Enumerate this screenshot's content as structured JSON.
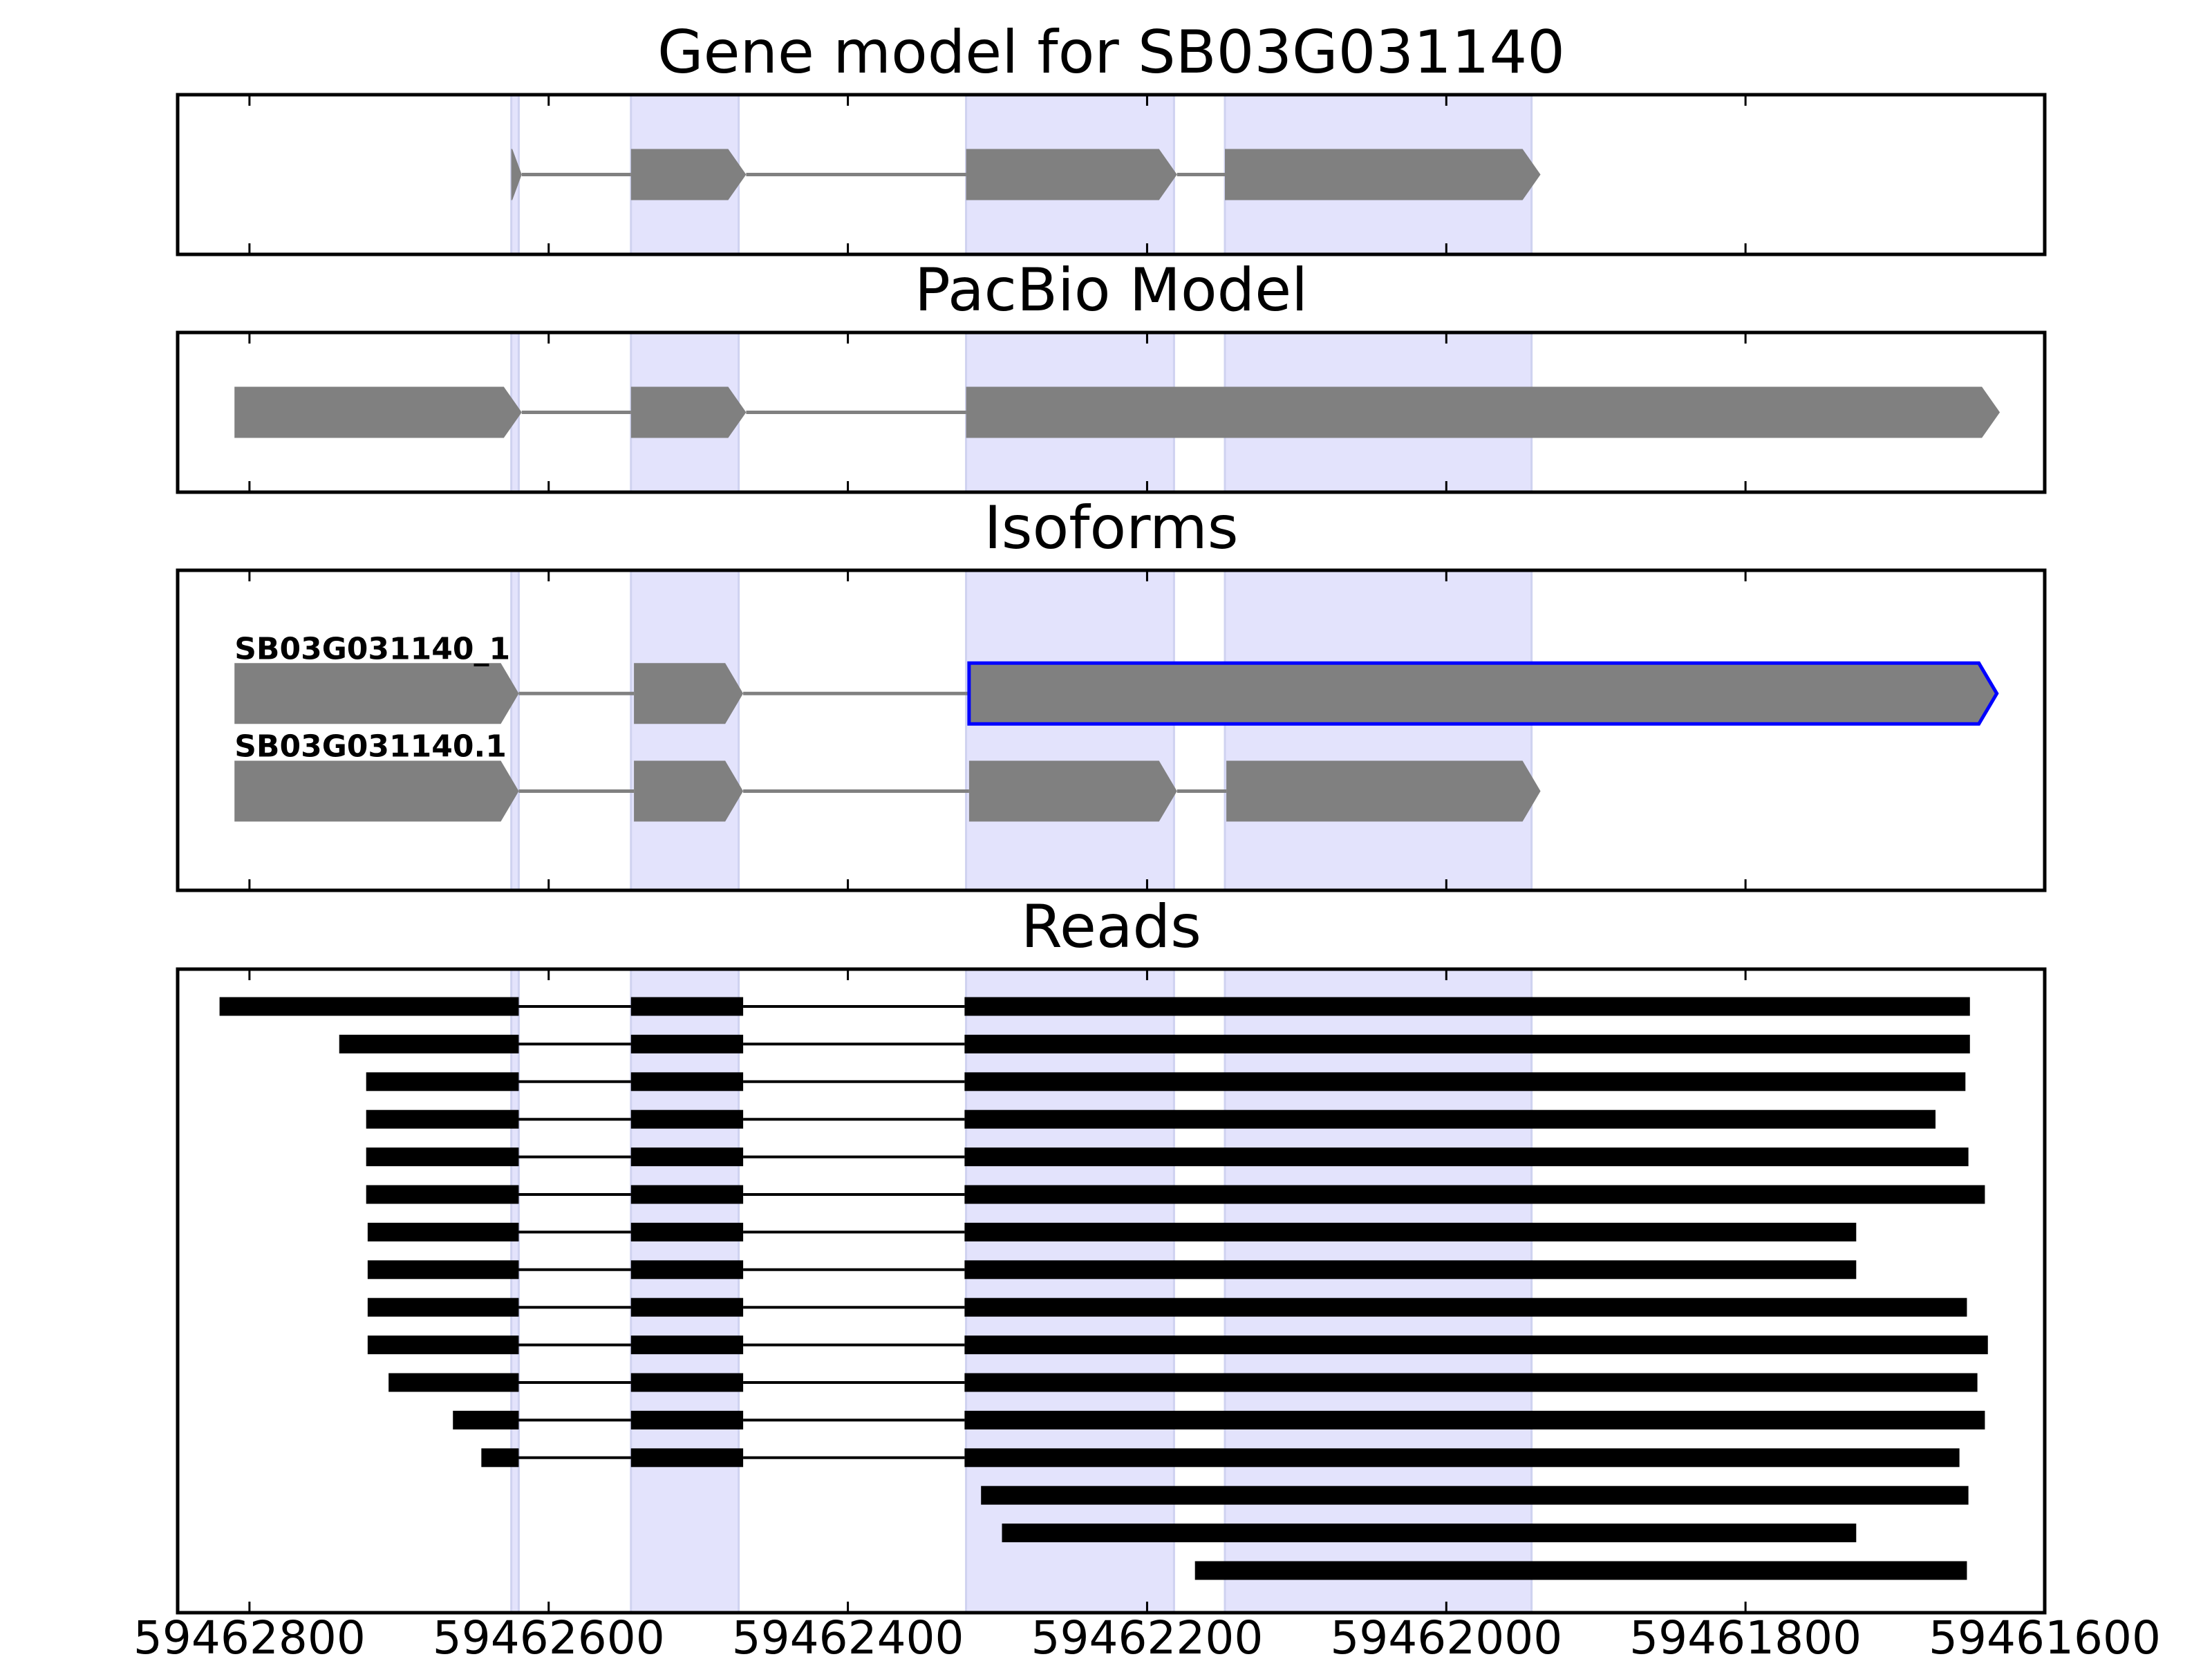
{
  "chart_data": {
    "type": "gene-structure",
    "x_axis": {
      "range": [
        59462848,
        59461600
      ],
      "reversed": true,
      "ticks": [
        59462800,
        59462600,
        59462400,
        59462200,
        59462000,
        59461800,
        59461600
      ],
      "tick_labels": [
        "59462800",
        "59462600",
        "59462400",
        "59462200",
        "59462000",
        "59461800",
        "59461600"
      ]
    },
    "highlight_regions": [
      [
        59462625,
        59462620
      ],
      [
        59462545,
        59462473
      ],
      [
        59462321,
        59462182
      ],
      [
        59462148,
        59461943
      ]
    ],
    "panels": [
      {
        "title": "Gene model for SB03G031140",
        "tracks": [
          {
            "label": "",
            "exons": [
              [
                59462625,
                59462618
              ],
              [
                59462545,
                59462468
              ],
              [
                59462321,
                59462180
              ],
              [
                59462148,
                59461937
              ]
            ],
            "highlighted": false
          }
        ]
      },
      {
        "title": "PacBio Model",
        "tracks": [
          {
            "label": "",
            "exons": [
              [
                59462810,
                59462618
              ],
              [
                59462545,
                59462468
              ],
              [
                59462321,
                59461630
              ]
            ],
            "highlighted": false
          }
        ]
      },
      {
        "title": "Isoforms",
        "tracks": [
          {
            "label": "SB03G031140_1",
            "exons": [
              [
                59462810,
                59462620
              ],
              [
                59462543,
                59462470
              ],
              [
                59462319,
                59461632
              ]
            ],
            "highlighted": true
          },
          {
            "label": "SB03G031140.1",
            "exons": [
              [
                59462810,
                59462620
              ],
              [
                59462543,
                59462470
              ],
              [
                59462319,
                59462180
              ],
              [
                59462147,
                59461937
              ]
            ],
            "highlighted": false
          }
        ]
      },
      {
        "title": "Reads",
        "reads": [
          [
            [
              59462820,
              59462620
            ],
            [
              59462545,
              59462470
            ],
            [
              59462322,
              59461650
            ]
          ],
          [
            [
              59462740,
              59462620
            ],
            [
              59462545,
              59462470
            ],
            [
              59462322,
              59461650
            ]
          ],
          [
            [
              59462722,
              59462620
            ],
            [
              59462545,
              59462470
            ],
            [
              59462322,
              59461653
            ]
          ],
          [
            [
              59462722,
              59462620
            ],
            [
              59462545,
              59462470
            ],
            [
              59462322,
              59461673
            ]
          ],
          [
            [
              59462722,
              59462620
            ],
            [
              59462545,
              59462470
            ],
            [
              59462322,
              59461651
            ]
          ],
          [
            [
              59462722,
              59462620
            ],
            [
              59462545,
              59462470
            ],
            [
              59462322,
              59461640
            ]
          ],
          [
            [
              59462721,
              59462620
            ],
            [
              59462545,
              59462470
            ],
            [
              59462322,
              59461726
            ]
          ],
          [
            [
              59462721,
              59462620
            ],
            [
              59462545,
              59462470
            ],
            [
              59462322,
              59461726
            ]
          ],
          [
            [
              59462721,
              59462620
            ],
            [
              59462545,
              59462470
            ],
            [
              59462322,
              59461652
            ]
          ],
          [
            [
              59462721,
              59462620
            ],
            [
              59462545,
              59462470
            ],
            [
              59462322,
              59461638
            ]
          ],
          [
            [
              59462707,
              59462620
            ],
            [
              59462545,
              59462470
            ],
            [
              59462322,
              59461645
            ]
          ],
          [
            [
              59462664,
              59462620
            ],
            [
              59462545,
              59462470
            ],
            [
              59462322,
              59461640
            ]
          ],
          [
            [
              59462645,
              59462620
            ],
            [
              59462545,
              59462470
            ],
            [
              59462322,
              59461657
            ]
          ],
          [
            [
              59462311,
              59461651
            ]
          ],
          [
            [
              59462297,
              59461726
            ]
          ],
          [
            [
              59462168,
              59461652
            ]
          ]
        ]
      }
    ],
    "colors": {
      "exon_fill": "#808080",
      "intron_line": "#808080",
      "highlight_region": "#e3e3fc",
      "highlight_region_edge": "#cfd2f0",
      "selected_isoform_outline": "#0000ff",
      "read": "#000000"
    }
  }
}
